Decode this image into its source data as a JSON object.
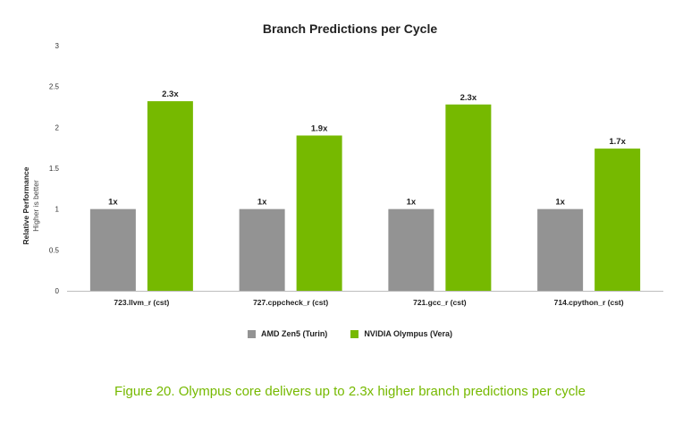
{
  "chart_data": {
    "type": "bar",
    "title": "Branch Predictions per Cycle",
    "ylabel": "Relative Performance",
    "ylabel_sub": "Higher is better",
    "xlabel": "",
    "ylim": [
      0,
      3
    ],
    "yticks": [
      0,
      0.5,
      1,
      1.5,
      2,
      2.5,
      3
    ],
    "ytick_labels": [
      "0",
      "0.5",
      "1",
      "1.5",
      "2",
      "2.5",
      "3"
    ],
    "grid": false,
    "legend_position": "bottom",
    "categories": [
      "723.llvm_r (cst)",
      "727.cppcheck_r (cst)",
      "721.gcc_r (cst)",
      "714.cpython_r (cst)"
    ],
    "series": [
      {
        "name": "AMD Zen5 (Turin)",
        "color": "#939393",
        "values": [
          1,
          1,
          1,
          1
        ],
        "labels": [
          "1x",
          "1x",
          "1x",
          "1x"
        ]
      },
      {
        "name": "NVIDIA Olympus (Vera)",
        "color": "#76b900",
        "values": [
          2.32,
          1.9,
          2.28,
          1.74
        ],
        "labels": [
          "2.3x",
          "1.9x",
          "2.3x",
          "1.7x"
        ]
      }
    ]
  },
  "caption": "Figure 20. Olympus core delivers up to 2.3x higher branch predictions per cycle"
}
